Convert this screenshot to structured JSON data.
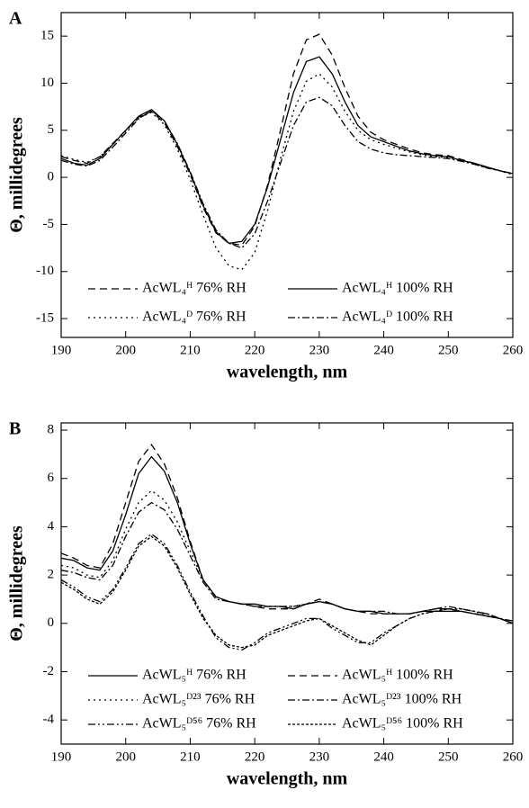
{
  "chart_data": [
    {
      "type": "line",
      "label": "A",
      "x_label": "wavelength, nm",
      "y_label": "Θ, millidegrees",
      "xlim": [
        190,
        260
      ],
      "xticks": [
        190,
        200,
        210,
        220,
        230,
        240,
        250,
        260
      ],
      "ylim": [
        -17,
        17.5
      ],
      "yticks": [
        -15,
        -10,
        -5,
        0,
        5,
        10,
        15
      ],
      "x": [
        190,
        192,
        194,
        196,
        198,
        200,
        202,
        204,
        206,
        208,
        210,
        212,
        214,
        216,
        218,
        220,
        222,
        224,
        226,
        228,
        230,
        232,
        234,
        236,
        238,
        240,
        242,
        244,
        246,
        248,
        250,
        252,
        254,
        256,
        258,
        260
      ],
      "series": [
        {
          "name": "AcWL₄ᴴ 76% RH",
          "color": "#000000",
          "style": "dashed",
          "values": [
            2.2,
            1.8,
            1.5,
            2.2,
            3.6,
            5.0,
            6.4,
            7.0,
            5.8,
            3.3,
            0.3,
            -3.2,
            -5.9,
            -7.0,
            -7.2,
            -5.2,
            -0.8,
            5.0,
            11.0,
            14.6,
            15.2,
            13.0,
            9.5,
            6.5,
            4.8,
            4.0,
            3.5,
            3.0,
            2.6,
            2.4,
            2.3,
            1.9,
            1.5,
            1.1,
            0.7,
            0.4
          ]
        },
        {
          "name": "AcWL₄ᴴ 100% RH",
          "color": "#000000",
          "style": "solid",
          "values": [
            2.0,
            1.5,
            1.3,
            2.0,
            3.5,
            5.0,
            6.5,
            7.2,
            6.0,
            3.5,
            0.5,
            -3.0,
            -5.8,
            -7.0,
            -6.8,
            -5.0,
            -1.0,
            4.0,
            9.0,
            12.3,
            12.8,
            11.0,
            8.0,
            5.5,
            4.3,
            3.8,
            3.3,
            2.8,
            2.5,
            2.3,
            2.2,
            1.8,
            1.5,
            1.1,
            0.7,
            0.4
          ]
        },
        {
          "name": "AcWL₄ᴰ 76% RH",
          "color": "#000000",
          "style": "dotted",
          "values": [
            2.3,
            1.9,
            1.6,
            2.2,
            3.5,
            4.9,
            6.3,
            6.9,
            5.6,
            3.0,
            -0.2,
            -4.0,
            -7.5,
            -9.4,
            -9.8,
            -8.0,
            -3.5,
            2.0,
            7.0,
            10.2,
            11.0,
            9.6,
            7.0,
            5.0,
            4.0,
            3.5,
            3.1,
            2.7,
            2.4,
            2.2,
            2.1,
            1.8,
            1.4,
            1.0,
            0.7,
            0.3
          ]
        },
        {
          "name": "AcWL₄ᴰ 100% RH",
          "color": "#000000",
          "style": "dash-dot",
          "values": [
            1.8,
            1.4,
            1.2,
            1.8,
            3.2,
            4.7,
            6.2,
            7.1,
            6.0,
            3.6,
            0.6,
            -2.8,
            -5.6,
            -7.0,
            -7.5,
            -6.0,
            -2.5,
            1.5,
            5.5,
            8.0,
            8.5,
            7.6,
            5.5,
            3.8,
            3.0,
            2.6,
            2.4,
            2.3,
            2.2,
            2.1,
            2.0,
            1.7,
            1.4,
            1.0,
            0.7,
            0.3
          ]
        }
      ]
    },
    {
      "type": "line",
      "label": "B",
      "x_label": "wavelength, nm",
      "y_label": "Θ, millidegrees",
      "xlim": [
        190,
        260
      ],
      "xticks": [
        190,
        200,
        210,
        220,
        230,
        240,
        250,
        260
      ],
      "ylim": [
        -5,
        8.3
      ],
      "yticks": [
        -4,
        -2,
        0,
        2,
        4,
        6,
        8
      ],
      "x": [
        190,
        192,
        194,
        196,
        198,
        200,
        202,
        204,
        206,
        208,
        210,
        212,
        214,
        216,
        218,
        220,
        222,
        224,
        226,
        228,
        230,
        232,
        234,
        236,
        238,
        240,
        242,
        244,
        246,
        248,
        250,
        252,
        254,
        256,
        258,
        260
      ],
      "series": [
        {
          "name": "AcWL₅ᴴ 76% RH",
          "color": "#000000",
          "style": "solid",
          "values": [
            2.7,
            2.6,
            2.3,
            2.2,
            3.0,
            4.5,
            6.2,
            6.9,
            6.3,
            5.0,
            3.3,
            1.8,
            1.1,
            0.9,
            0.8,
            0.8,
            0.7,
            0.7,
            0.6,
            0.8,
            0.9,
            0.8,
            0.6,
            0.5,
            0.5,
            0.4,
            0.4,
            0.4,
            0.5,
            0.5,
            0.5,
            0.5,
            0.4,
            0.3,
            0.2,
            0.0
          ]
        },
        {
          "name": "AcWL₅ᴴ 100% RH",
          "color": "#000000",
          "style": "dashed",
          "values": [
            2.9,
            2.7,
            2.4,
            2.3,
            3.3,
            5.0,
            6.7,
            7.4,
            6.6,
            5.2,
            3.4,
            1.8,
            1.1,
            0.9,
            0.8,
            0.7,
            0.6,
            0.6,
            0.6,
            0.8,
            1.0,
            0.8,
            0.6,
            0.5,
            0.4,
            0.4,
            0.4,
            0.4,
            0.5,
            0.6,
            0.6,
            0.5,
            0.4,
            0.3,
            0.2,
            0.0
          ]
        },
        {
          "name": "AcWL₅ᴰ²³ 76% RH",
          "color": "#000000",
          "style": "dotted",
          "values": [
            2.4,
            2.3,
            2.0,
            1.9,
            2.6,
            3.9,
            5.0,
            5.5,
            5.1,
            4.2,
            3.0,
            1.8,
            1.1,
            0.9,
            0.8,
            0.7,
            0.7,
            0.7,
            0.7,
            0.8,
            0.9,
            0.8,
            0.6,
            0.5,
            0.5,
            0.4,
            0.4,
            0.4,
            0.5,
            0.6,
            0.6,
            0.6,
            0.5,
            0.3,
            0.2,
            0.0
          ]
        },
        {
          "name": "AcWL₅ᴰ²³ 100% RH",
          "color": "#000000",
          "style": "dash-dot",
          "values": [
            2.2,
            2.1,
            1.9,
            1.8,
            2.4,
            3.6,
            4.6,
            5.0,
            4.7,
            3.9,
            2.8,
            1.7,
            1.0,
            0.9,
            0.8,
            0.7,
            0.7,
            0.7,
            0.7,
            0.8,
            0.9,
            0.8,
            0.6,
            0.5,
            0.5,
            0.5,
            0.4,
            0.4,
            0.5,
            0.6,
            0.7,
            0.6,
            0.5,
            0.4,
            0.2,
            0.1
          ]
        },
        {
          "name": "AcWL₅ᴰ⁵⁶ 76% RH",
          "color": "#000000",
          "style": "dash-dot-dot",
          "values": [
            1.8,
            1.5,
            1.1,
            0.9,
            1.4,
            2.3,
            3.3,
            3.7,
            3.3,
            2.4,
            1.3,
            0.3,
            -0.6,
            -1.0,
            -1.1,
            -0.8,
            -0.4,
            -0.2,
            0.0,
            0.2,
            0.2,
            -0.2,
            -0.5,
            -0.8,
            -0.8,
            -0.4,
            -0.1,
            0.2,
            0.4,
            0.5,
            0.6,
            0.6,
            0.5,
            0.4,
            0.2,
            0.0
          ]
        },
        {
          "name": "AcWL₅ᴰ⁵⁶ 100% RH",
          "color": "#000000",
          "style": "short-dash",
          "values": [
            1.7,
            1.4,
            1.0,
            0.8,
            1.3,
            2.2,
            3.2,
            3.6,
            3.2,
            2.3,
            1.2,
            0.2,
            -0.5,
            -0.9,
            -1.0,
            -0.9,
            -0.5,
            -0.3,
            -0.1,
            0.1,
            0.2,
            -0.1,
            -0.4,
            -0.7,
            -0.9,
            -0.5,
            -0.1,
            0.2,
            0.4,
            0.5,
            0.6,
            0.5,
            0.4,
            0.3,
            0.2,
            0.0
          ]
        }
      ]
    }
  ]
}
